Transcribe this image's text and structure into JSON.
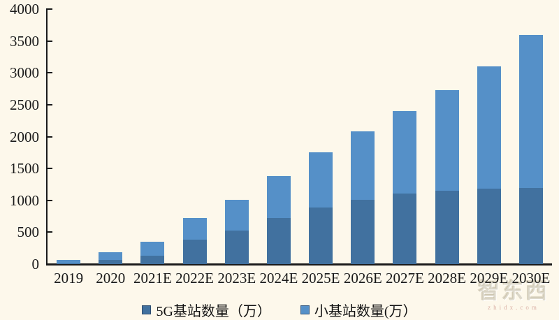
{
  "chart_data": {
    "type": "bar",
    "stacked": true,
    "title": "",
    "categories": [
      "2019",
      "2020",
      "2021E",
      "2022E",
      "2023E",
      "2024E",
      "2025E",
      "2026E",
      "2027E",
      "2028E",
      "2029E",
      "2030E"
    ],
    "series": [
      {
        "name": "5G基站数量（万）",
        "color": "#41719F",
        "values": [
          15,
          70,
          130,
          380,
          530,
          720,
          890,
          1010,
          1110,
          1150,
          1180,
          1200
        ]
      },
      {
        "name": "小基站数量(万）",
        "color": "#5590C8",
        "values": [
          55,
          120,
          220,
          340,
          480,
          660,
          860,
          1070,
          1290,
          1580,
          1920,
          2400
        ]
      }
    ],
    "stacked_totals": [
      70,
      190,
      350,
      720,
      1010,
      1380,
      1750,
      2080,
      2400,
      2730,
      3100,
      3600
    ],
    "ylim": [
      0,
      4000
    ],
    "ytick_step": 500,
    "ytick_labels": [
      "0",
      "500",
      "1000",
      "1500",
      "2000",
      "2500",
      "3000",
      "3500",
      "4000"
    ],
    "xlabel": "",
    "ylabel": "",
    "grid": false,
    "legend_position": "bottom"
  },
  "watermark": {
    "brand": "智东西",
    "domain": "zhidx.com"
  },
  "colors": {
    "background": "#FDF8EB",
    "axis": "#1A1A1A",
    "text": "#1A1A1A",
    "series_dark": "#41719F",
    "series_light": "#5590C8"
  }
}
